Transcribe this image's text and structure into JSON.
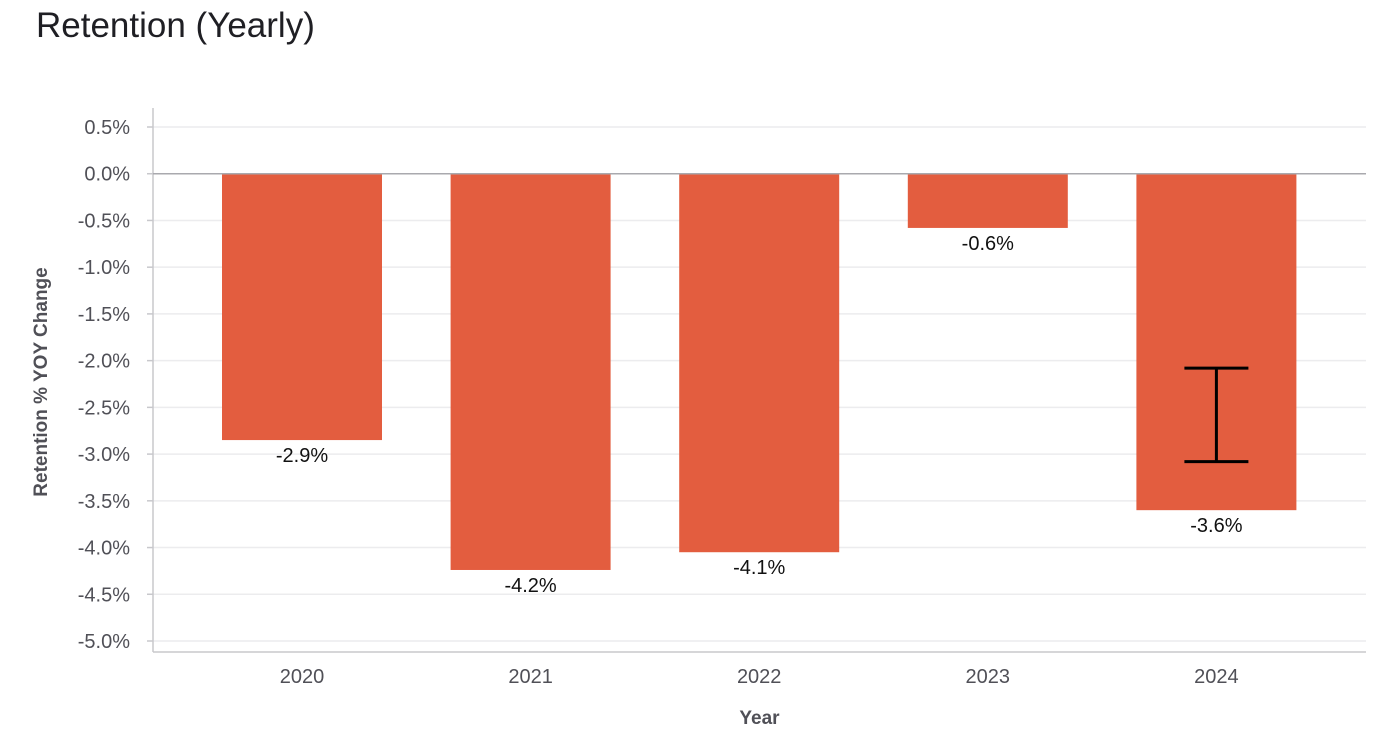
{
  "page": {
    "title": "Retention (Yearly)"
  },
  "chart_data": {
    "type": "bar",
    "title": "Retention (Yearly)",
    "xlabel": "Year",
    "ylabel": "Retention % YOY Change",
    "categories": [
      "2020",
      "2021",
      "2022",
      "2023",
      "2024"
    ],
    "values": [
      -2.85,
      -4.24,
      -4.05,
      -0.58,
      -3.6
    ],
    "data_labels": [
      "-2.9%",
      "-4.2%",
      "-4.1%",
      "-0.6%",
      "-3.6%"
    ],
    "ylim": [
      -5.0,
      0.5
    ],
    "yticks": [
      0.5,
      0.0,
      -0.5,
      -1.0,
      -1.5,
      -2.0,
      -2.5,
      -3.0,
      -3.5,
      -4.0,
      -4.5,
      -5.0
    ],
    "ytick_labels": [
      "0.5%",
      "0.0%",
      "-0.5%",
      "-1.0%",
      "-1.5%",
      "-2.0%",
      "-2.5%",
      "-3.0%",
      "-3.5%",
      "-4.0%",
      "-4.5%",
      "-5.0%"
    ],
    "error_bar": {
      "category": "2024",
      "low": -3.08,
      "high": -2.08
    },
    "grid": true,
    "legend": "none",
    "colors": {
      "bar": "#e35d3f",
      "grid": "#ececee",
      "zero_line": "#a9a9ae",
      "axis": "#c8c8cc",
      "error_bar": "#000000"
    }
  }
}
